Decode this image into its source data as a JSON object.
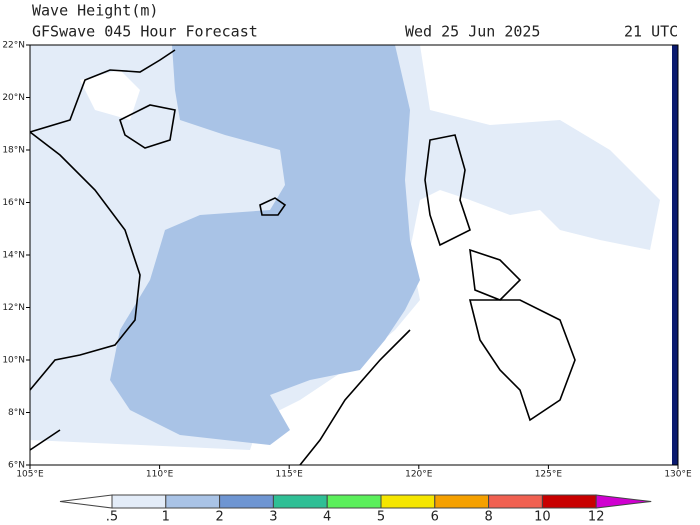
{
  "title": "Wave Height(m)",
  "subtitle": "GFSwave 045 Hour Forecast",
  "date": "Wed 25 Jun 2025",
  "time": "21 UTC",
  "map": {
    "xlim": [
      105,
      130
    ],
    "ylim": [
      6,
      22
    ],
    "xticks": [
      {
        "value": 105,
        "label": "105°E"
      },
      {
        "value": 110,
        "label": "110°E"
      },
      {
        "value": 115,
        "label": "115°E"
      },
      {
        "value": 120,
        "label": "120°E"
      },
      {
        "value": 125,
        "label": "125°E"
      },
      {
        "value": 130,
        "label": "130°E"
      }
    ],
    "yticks": [
      {
        "value": 6,
        "label": "6°N"
      },
      {
        "value": 8,
        "label": "8°N"
      },
      {
        "value": 10,
        "label": "10°N"
      },
      {
        "value": 12,
        "label": "12°N"
      },
      {
        "value": 14,
        "label": "14°N"
      },
      {
        "value": 16,
        "label": "16°N"
      },
      {
        "value": 18,
        "label": "18°N"
      },
      {
        "value": 20,
        "label": "20°N"
      },
      {
        "value": 22,
        "label": "22°N"
      }
    ]
  },
  "colorbar": {
    "levels": [
      {
        "value": 0.5,
        "label": ".5"
      },
      1,
      2,
      3,
      4,
      5,
      6,
      8,
      10,
      12
    ],
    "colors": [
      "#ffffff",
      "#e3ecf8",
      "#a9c3e6",
      "#6e95d2",
      "#2fbf95",
      "#5bef5b",
      "#f5e600",
      "#f5a000",
      "#f06050",
      "#c80000",
      "#d000d0"
    ]
  }
}
